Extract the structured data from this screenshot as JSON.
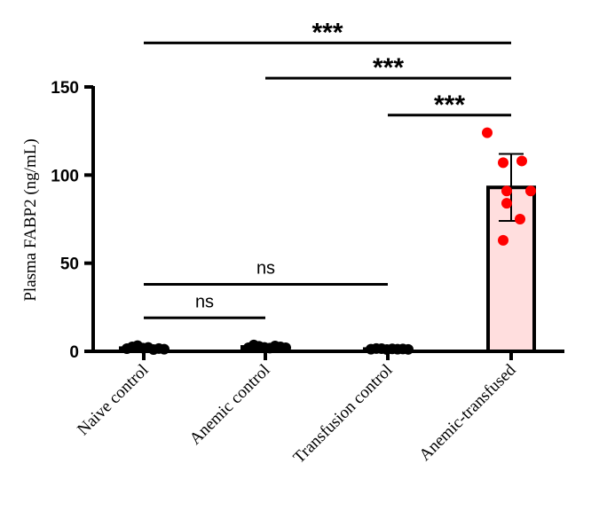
{
  "chart_data": {
    "type": "bar",
    "title": "",
    "xlabel": "",
    "ylabel": "Plasma FABP2 (ng/mL)",
    "ylim": [
      0,
      150
    ],
    "yticks": [
      0,
      50,
      100,
      150
    ],
    "grid": false,
    "categories": [
      "Naive control",
      "Anemic control",
      "Transfusion control",
      "Anemic-transfused"
    ],
    "means": [
      1.8,
      2.5,
      1.3,
      93
    ],
    "sd": [
      0.8,
      0.9,
      0.5,
      19
    ],
    "points": [
      [
        1.5,
        2.5,
        3.2,
        1.8,
        2.2,
        1.0,
        1.6,
        1.2
      ],
      [
        2.0,
        3.6,
        2.8,
        2.2,
        1.8,
        3.0,
        2.5,
        2.0
      ],
      [
        1.2,
        1.6,
        1.5,
        1.0,
        1.4,
        1.2,
        1.3,
        1.1
      ],
      [
        124,
        107,
        108,
        91,
        91,
        84,
        75,
        63
      ]
    ],
    "colors": {
      "bar_fill": [
        "#ffffff",
        "#ffffff",
        "#ffffff",
        "#ffdede"
      ],
      "points": [
        "#000000",
        "#000000",
        "#000000",
        "#ff0000"
      ],
      "axis": "#000000"
    },
    "significance": [
      {
        "from": 0,
        "to": 3,
        "y": 175,
        "label": "***"
      },
      {
        "from": 1,
        "to": 3,
        "y": 155,
        "label": "***"
      },
      {
        "from": 2,
        "to": 3,
        "y": 134,
        "label": "***"
      },
      {
        "from": 0,
        "to": 2,
        "y": 38,
        "label": "ns"
      },
      {
        "from": 0,
        "to": 1,
        "y": 19,
        "label": "ns"
      }
    ]
  }
}
